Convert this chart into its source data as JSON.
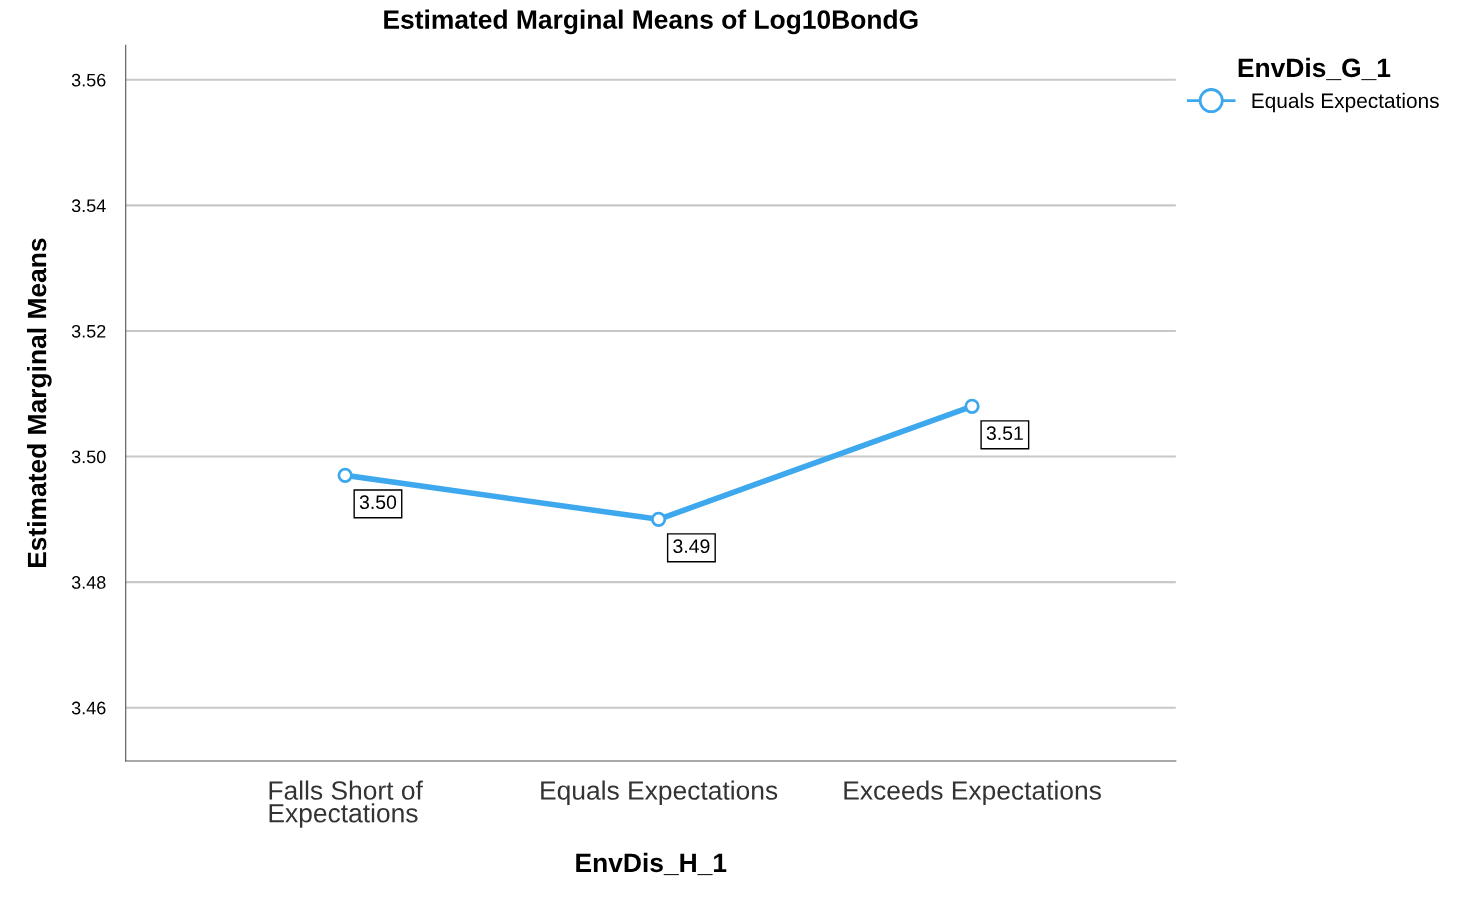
{
  "chart_data": {
    "type": "line",
    "title": "Estimated Marginal Means of Log10BondG",
    "xlabel": "EnvDis_H_1",
    "ylabel": "Estimated Marginal Means",
    "legend_title": "EnvDis_G_1",
    "categories": [
      "Falls Short of\nExpectations",
      "Equals Expectations",
      "Exceeds Expectations"
    ],
    "series": [
      {
        "name": "Equals Expectations",
        "color": "#3ea8ee",
        "values": [
          3.497,
          3.49,
          3.508
        ],
        "value_labels": [
          "3.50",
          "3.49",
          "3.51"
        ]
      }
    ],
    "ylim": [
      3.4515,
      3.5655
    ],
    "yticks": [
      {
        "value": 3.46,
        "label": "3.46"
      },
      {
        "value": 3.48,
        "label": "3.48"
      },
      {
        "value": 3.5,
        "label": "3.50"
      },
      {
        "value": 3.52,
        "label": "3.52"
      },
      {
        "value": 3.54,
        "label": "3.54"
      },
      {
        "value": 3.56,
        "label": "3.56"
      }
    ],
    "grid": "y",
    "legend": "top right",
    "marker": "circle",
    "line_style": "solid"
  }
}
